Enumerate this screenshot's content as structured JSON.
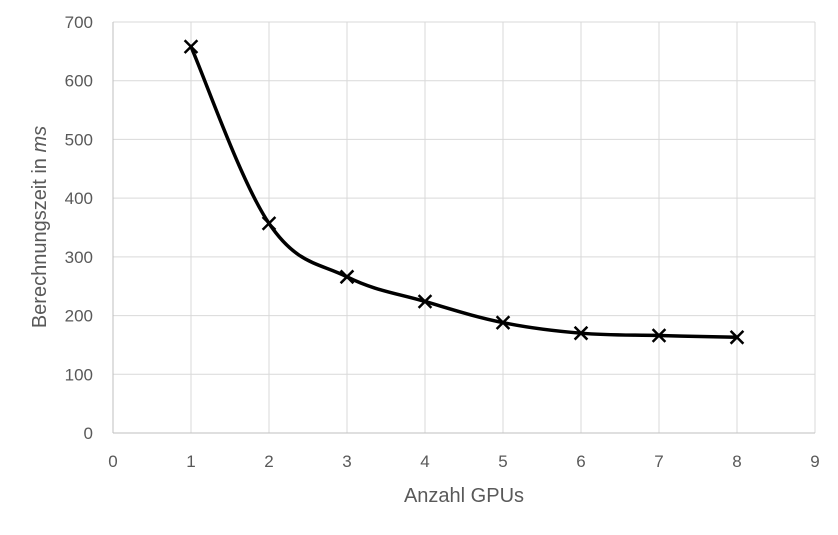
{
  "chart_data": {
    "type": "scatter",
    "xlabel": "Anzahl GPUs",
    "ylabel_prefix": "Berechnungszeit in ",
    "ylabel_unit": "ms",
    "xlim": [
      0,
      9
    ],
    "ylim": [
      0,
      700
    ],
    "x_ticks": [
      0,
      1,
      2,
      3,
      4,
      5,
      6,
      7,
      8,
      9
    ],
    "y_ticks": [
      0,
      100,
      200,
      300,
      400,
      500,
      600,
      700
    ],
    "grid": true,
    "legend": "none",
    "series": [
      {
        "x": [
          1,
          2,
          3,
          4,
          5,
          6,
          7,
          8
        ],
        "y": [
          658,
          357,
          266,
          224,
          188,
          170,
          166,
          163
        ],
        "line": "smooth",
        "marker": "x",
        "color": "#000000"
      }
    ]
  }
}
